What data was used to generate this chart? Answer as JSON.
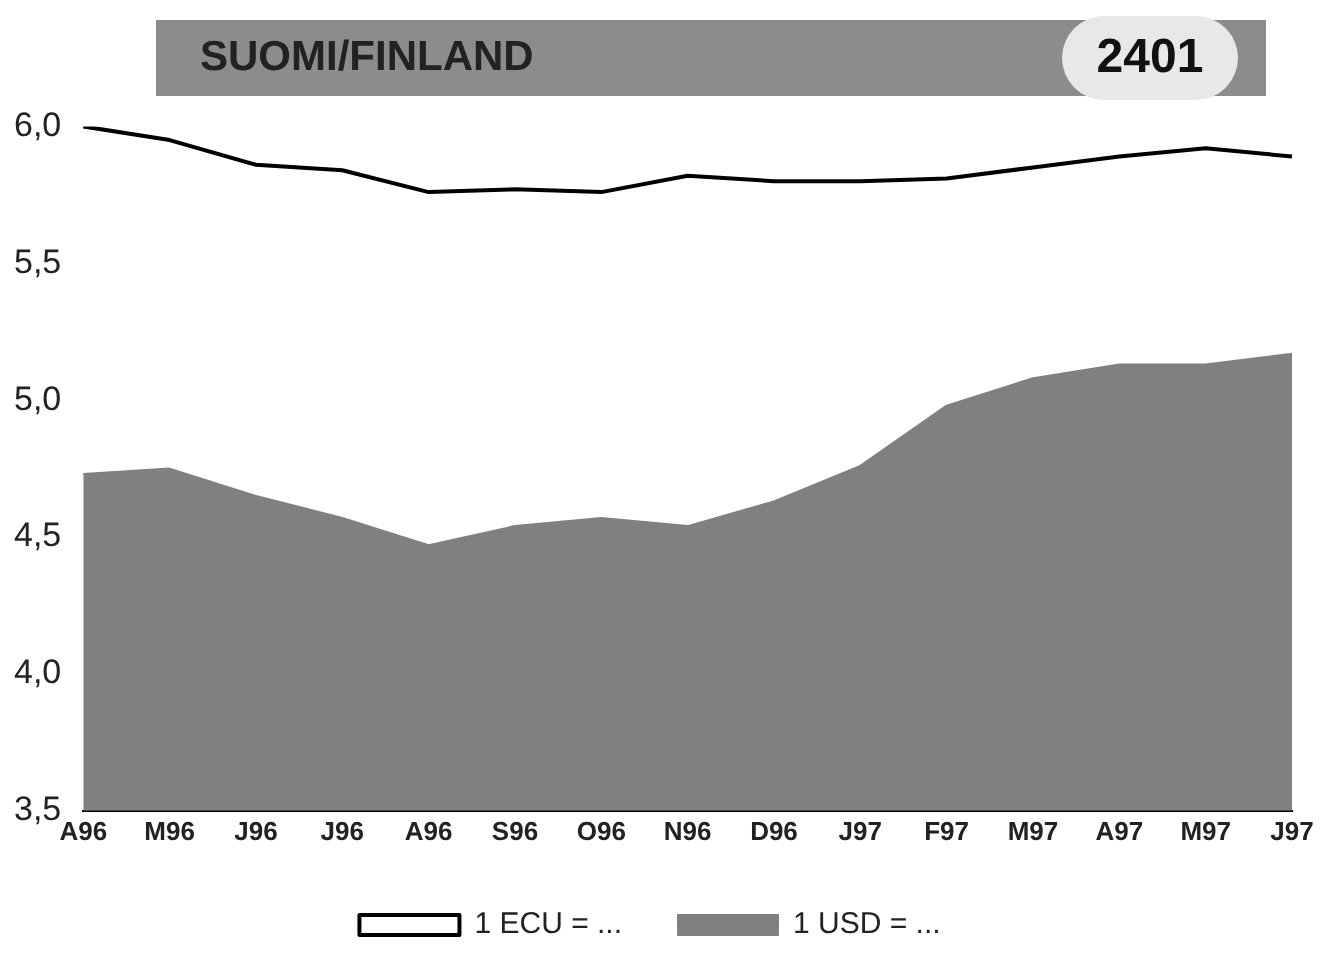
{
  "chart_data": {
    "type": "line",
    "title": "SUOMI/FINLAND",
    "subtitle": "2401",
    "categories": [
      "A96",
      "M96",
      "J96",
      "J96",
      "A96",
      "S96",
      "O96",
      "N96",
      "D96",
      "J97",
      "F97",
      "M97",
      "A97",
      "M97",
      "J97"
    ],
    "series": [
      {
        "name": "1 ECU = ...",
        "color": "#000000",
        "values": [
          6.0,
          5.95,
          5.86,
          5.84,
          5.76,
          5.77,
          5.76,
          5.82,
          5.8,
          5.8,
          5.81,
          5.85,
          5.89,
          5.92,
          5.89
        ]
      },
      {
        "name": "1 USD = ...",
        "type": "area",
        "color": "#808080",
        "values": [
          4.73,
          4.75,
          4.65,
          4.57,
          4.47,
          4.54,
          4.57,
          4.54,
          4.63,
          4.76,
          4.98,
          5.08,
          5.13,
          5.13,
          5.17
        ]
      }
    ],
    "ylim": [
      3.5,
      6.0
    ],
    "yticks": [
      {
        "value": 3.5,
        "label": "3,5"
      },
      {
        "value": 4.0,
        "label": "4,0"
      },
      {
        "value": 4.5,
        "label": "4,5"
      },
      {
        "value": 5.0,
        "label": "5,0"
      },
      {
        "value": 5.5,
        "label": "5,5"
      },
      {
        "value": 6.0,
        "label": "6,0"
      }
    ],
    "grid": false,
    "legend": "bottom",
    "marker": "none"
  }
}
